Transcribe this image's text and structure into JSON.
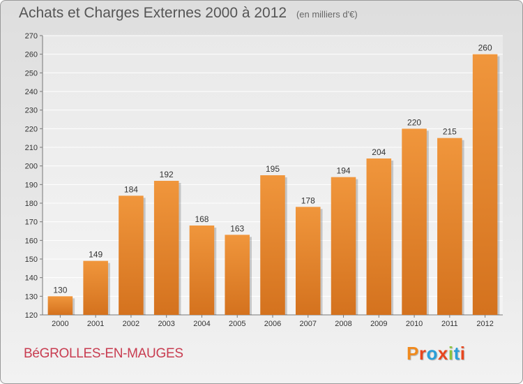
{
  "chart_data": {
    "type": "bar",
    "title": "Achats et Charges Externes 2000 à 2012",
    "subtitle": "(en milliers d'€)",
    "categories": [
      "2000",
      "2001",
      "2002",
      "2003",
      "2004",
      "2005",
      "2006",
      "2007",
      "2008",
      "2009",
      "2010",
      "2011",
      "2012"
    ],
    "values": [
      130,
      149,
      184,
      192,
      168,
      163,
      195,
      178,
      194,
      204,
      220,
      215,
      260
    ],
    "ylim": [
      120,
      270
    ],
    "yticks": [
      120,
      130,
      140,
      150,
      160,
      170,
      180,
      190,
      200,
      210,
      220,
      230,
      240,
      250,
      260,
      270
    ],
    "grid": true,
    "xlabel": "",
    "ylabel": "",
    "bar_color": "#f0963c",
    "bar_color_dark": "#d4721e"
  },
  "footer": {
    "commune": "BéGROLLES-EN-MAUGES",
    "logo": "Proxiti"
  },
  "colors": {
    "commune_text": "#c83c50",
    "logo_letters": [
      "#f08a1e",
      "#e8461e",
      "#2a9ed8",
      "#e8461e",
      "#8cc43c",
      "#2a9ed8",
      "#e8461e"
    ]
  }
}
